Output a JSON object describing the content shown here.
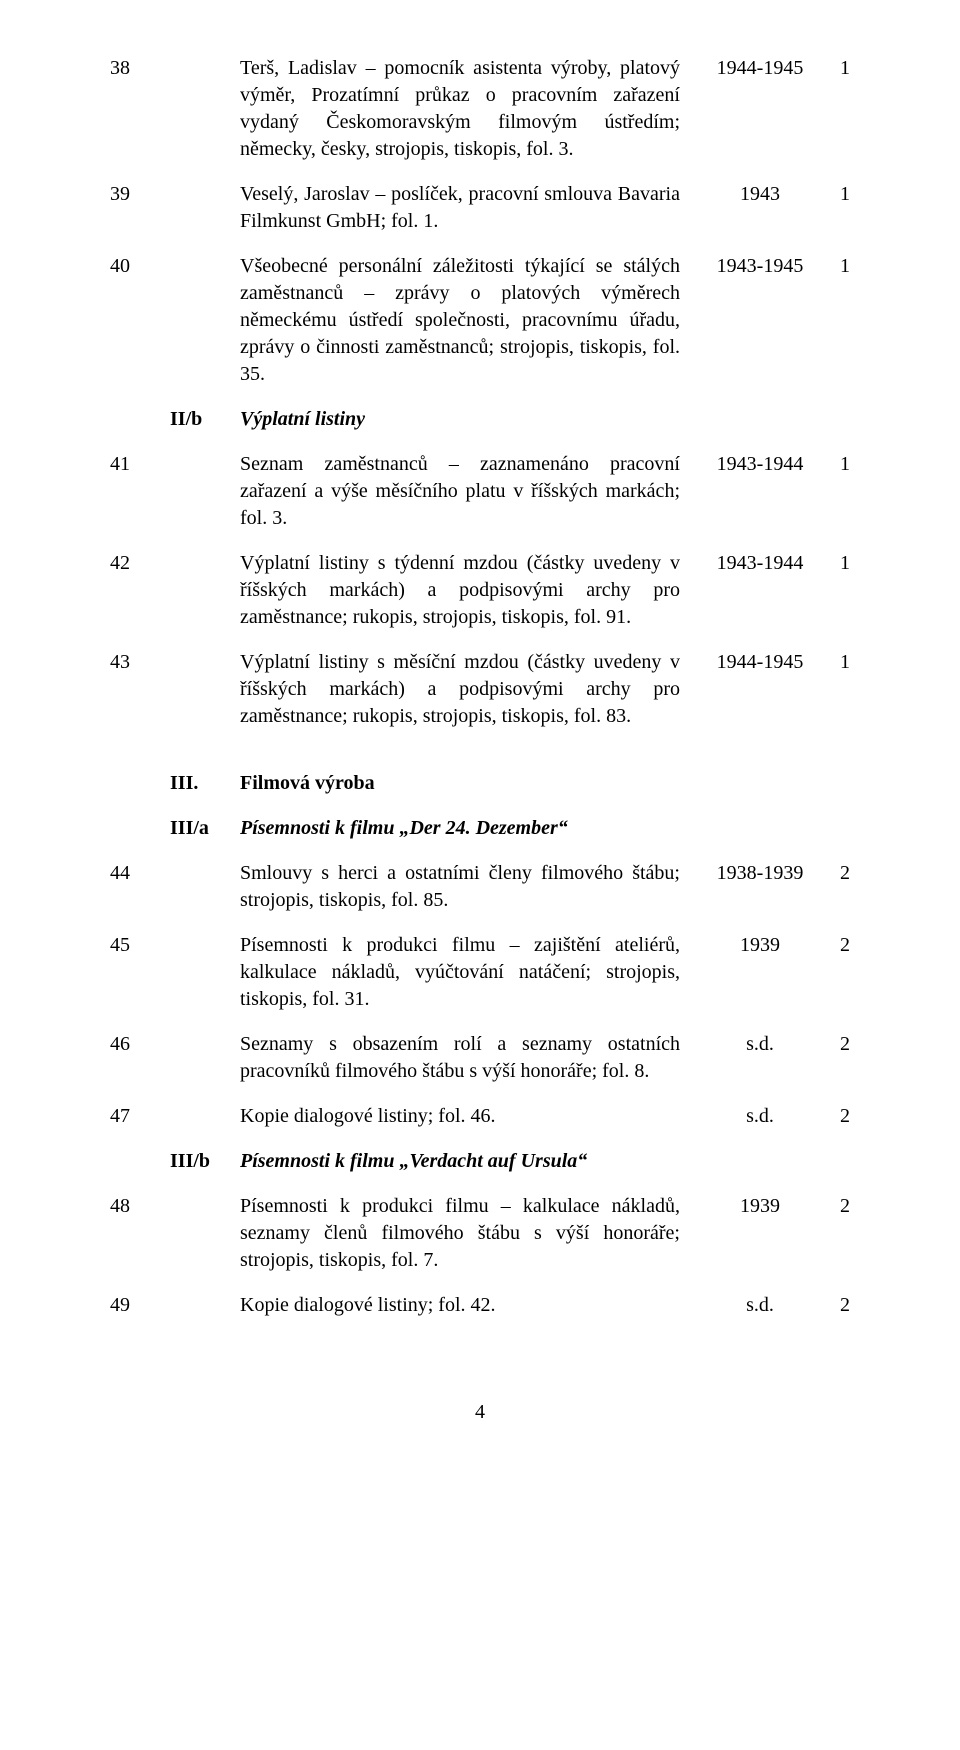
{
  "rows": [
    {
      "num": "38",
      "code": "",
      "desc": "Terš, Ladislav – pomocník asistenta výroby, platový výměr, Prozatímní průkaz o pracovním zařazení vydaný Českomoravským filmovým ústředím; německy, česky, strojopis, tiskopis, fol. 3.",
      "year": "1944-1945",
      "last": "1",
      "style": "plain"
    },
    {
      "num": "39",
      "code": "",
      "desc": "Veselý, Jaroslav – poslíček, pracovní smlouva Bavaria Filmkunst GmbH; fol. 1.",
      "year": "1943",
      "last": "1",
      "style": "plain"
    },
    {
      "num": "40",
      "code": "",
      "desc": "Všeobecné personální záležitosti týkající se stálých zaměstnanců – zprávy o platových výměrech německému ústředí společnosti, pracovnímu úřadu, zprávy o činnosti zaměstnanců; strojopis, tiskopis, fol. 35.",
      "year": "1943-1945",
      "last": "1",
      "style": "plain"
    },
    {
      "num": "",
      "code": "II/b",
      "desc": "Výplatní listiny",
      "year": "",
      "last": "",
      "style": "bolditalic"
    },
    {
      "num": "41",
      "code": "",
      "desc": "Seznam zaměstnanců – zaznamenáno pracovní zařazení a výše měsíčního platu v říšských markách; fol. 3.",
      "year": "1943-1944",
      "last": "1",
      "style": "plain"
    },
    {
      "num": "42",
      "code": "",
      "desc": "Výplatní listiny s týdenní mzdou (částky uvedeny v říšských markách) a podpisovými archy pro zaměstnance; rukopis, strojopis, tiskopis, fol. 91.",
      "year": "1943-1944",
      "last": "1",
      "style": "plain"
    },
    {
      "num": "43",
      "code": "",
      "desc": "Výplatní listiny s měsíční mzdou (částky uvedeny v říšských markách) a podpisovými archy pro zaměstnance; rukopis, strojopis, tiskopis, fol. 83.",
      "year": "1944-1945",
      "last": "1",
      "style": "plain"
    }
  ],
  "section3": {
    "num": "III.",
    "title": "Filmová výroba",
    "rows": [
      {
        "num": "",
        "code": "III/a",
        "desc": "Písemnosti k filmu „Der 24. Dezember“",
        "year": "",
        "last": "",
        "style": "bolditalic"
      },
      {
        "num": "44",
        "code": "",
        "desc": "Smlouvy s herci a ostatními členy filmového štábu; strojopis, tiskopis, fol. 85.",
        "year": "1938-1939",
        "last": "2",
        "style": "plain"
      },
      {
        "num": "45",
        "code": "",
        "desc": "Písemnosti k produkci filmu – zajištění ateliérů, kalkulace nákladů, vyúčtování natáčení; strojopis, tiskopis, fol. 31.",
        "year": "1939",
        "last": "2",
        "style": "plain"
      },
      {
        "num": "46",
        "code": "",
        "desc": "Seznamy s obsazením rolí a seznamy ostatních pracovníků filmového štábu s výší honoráře; fol. 8.",
        "year": "s.d.",
        "last": "2",
        "style": "plain"
      },
      {
        "num": "47",
        "code": "",
        "desc": "Kopie dialogové listiny; fol. 46.",
        "year": "s.d.",
        "last": "2",
        "style": "plain"
      },
      {
        "num": "",
        "code": "III/b",
        "desc": "Písemnosti k filmu „Verdacht auf Ursula“",
        "year": "",
        "last": "",
        "style": "bolditalic"
      },
      {
        "num": "48",
        "code": "",
        "desc": "Písemnosti k produkci filmu – kalkulace nákladů, seznamy členů filmového štábu s výší honoráře; strojopis, tiskopis, fol. 7.",
        "year": "1939",
        "last": "2",
        "style": "plain"
      },
      {
        "num": "49",
        "code": "",
        "desc": "Kopie dialogové listiny; fol. 42.",
        "year": "s.d.",
        "last": "2",
        "style": "plain"
      }
    ]
  },
  "pageNumber": "4"
}
